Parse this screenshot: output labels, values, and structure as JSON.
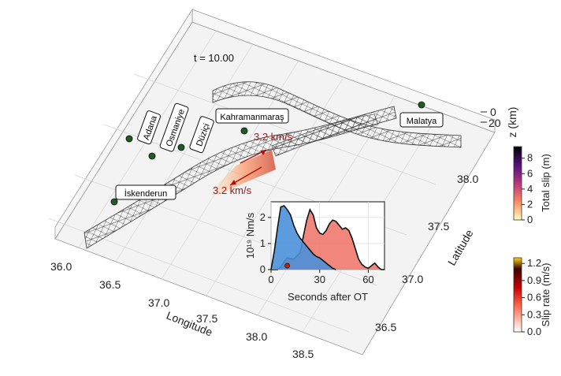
{
  "time_label": "t = 10.00",
  "axes": {
    "longitude": {
      "title": "Longitude",
      "ticks": [
        "36.0",
        "36.5",
        "37.0",
        "37.5",
        "38.0",
        "38.5"
      ]
    },
    "latitude": {
      "title": "Latitude",
      "ticks": [
        "36.5",
        "37.0",
        "37.5",
        "38.0"
      ]
    },
    "depth": {
      "title": "z (km)",
      "ticks": [
        "0",
        "20"
      ]
    }
  },
  "cities": [
    {
      "name": "Adana",
      "rotated": true
    },
    {
      "name": "Osmaniye",
      "rotated": true
    },
    {
      "name": "Düziçi",
      "rotated": true
    },
    {
      "name": "Kahramanmaraş",
      "rotated": false
    },
    {
      "name": "İskenderun",
      "rotated": false
    },
    {
      "name": "Malatya",
      "rotated": false
    }
  ],
  "rupture_speeds": [
    "3.2 km/s",
    "3.2 km/s"
  ],
  "colorbars": {
    "total_slip": {
      "title": "Total slip (m)",
      "ticks": [
        "0",
        "2",
        "4",
        "6",
        "8"
      ],
      "range": [
        0,
        9.5
      ],
      "colors": [
        "#fcfdbf",
        "#fc8961",
        "#b73779",
        "#51127c",
        "#000004"
      ]
    },
    "slip_rate": {
      "title": "Slip rate (m/s)",
      "ticks": [
        "0.0",
        "0.3",
        "0.6",
        "0.9",
        "1.2"
      ],
      "range": [
        0,
        1.3
      ],
      "colors": [
        "#ffffff",
        "#ff6a4d",
        "#c40000",
        "#3a0000",
        "#ffd700"
      ]
    }
  },
  "inset": {
    "ylabel": "10¹⁹ Nm/s",
    "xlabel": "Seconds after OT",
    "xticks": [
      "0",
      "30",
      "60"
    ],
    "yticks": [
      "0",
      "1",
      "2"
    ],
    "xlim": [
      0,
      70
    ],
    "ylim": [
      0,
      2.6
    ],
    "series": [
      {
        "color": "#4a90d9",
        "x": [
          0,
          2,
          4,
          6,
          8,
          10,
          12,
          14,
          16,
          18,
          20,
          22,
          24,
          26,
          28,
          30,
          32,
          34,
          36,
          38,
          40
        ],
        "y": [
          0.0,
          0.7,
          1.6,
          2.4,
          2.45,
          2.3,
          2.1,
          1.7,
          1.4,
          1.2,
          1.05,
          0.9,
          0.75,
          0.6,
          0.5,
          0.45,
          0.35,
          0.25,
          0.15,
          0.05,
          0.0
        ]
      },
      {
        "color": "#ef7a6e",
        "x": [
          0,
          4,
          6,
          8,
          10,
          14,
          18,
          20,
          22,
          24,
          26,
          28,
          30,
          32,
          34,
          36,
          38,
          40,
          42,
          44,
          46,
          48,
          50,
          52,
          54,
          56,
          58,
          60,
          62,
          64,
          66,
          68,
          70
        ],
        "y": [
          0.0,
          0.0,
          0.1,
          0.3,
          0.45,
          0.4,
          0.65,
          1.3,
          1.9,
          2.3,
          2.1,
          1.6,
          1.4,
          1.35,
          1.5,
          1.75,
          1.9,
          1.85,
          1.7,
          1.55,
          1.6,
          1.5,
          1.2,
          0.8,
          0.4,
          0.2,
          0.1,
          0.05,
          0.15,
          0.25,
          0.1,
          0.0,
          0.0
        ]
      }
    ],
    "marker": {
      "x": 10,
      "y": 0.15,
      "color": "#cc2200"
    }
  }
}
